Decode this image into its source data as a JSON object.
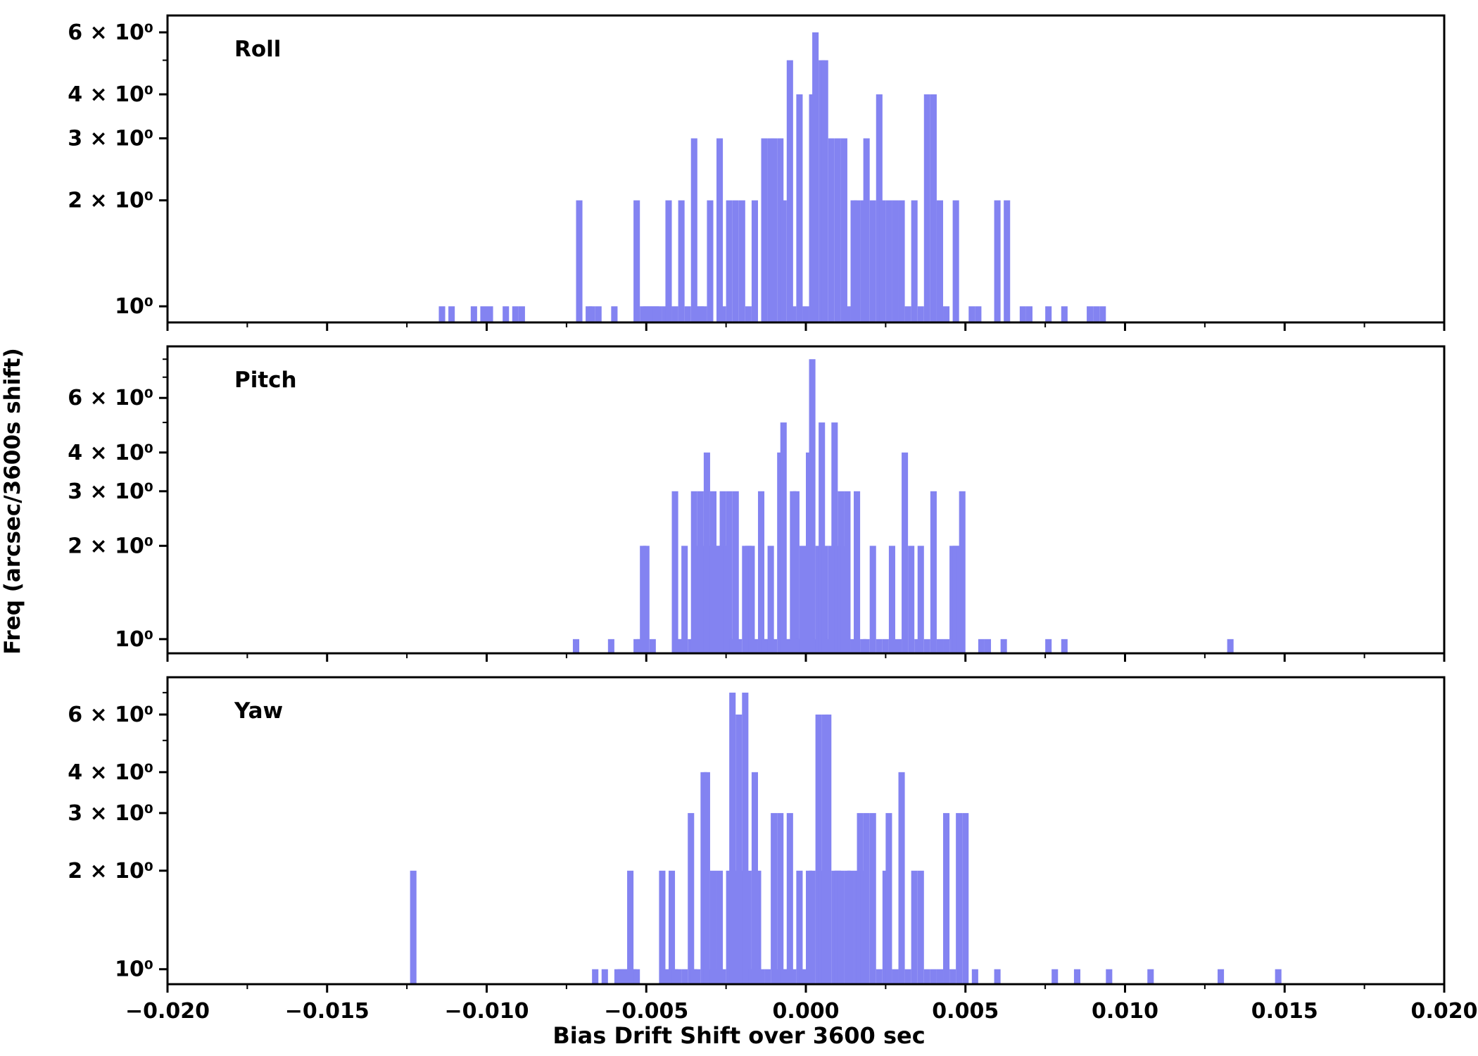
{
  "chart_data": {
    "type": "bar",
    "subtype": "histogram-log-y",
    "xlabel": "Bias Drift Shift over 3600 sec",
    "ylabel": "Freq (arcsec/3600s shift)",
    "xlim": [
      -0.02,
      0.02
    ],
    "x_ticks": [
      {
        "v": -0.02,
        "label": "−0.020"
      },
      {
        "v": -0.015,
        "label": "−0.015"
      },
      {
        "v": -0.01,
        "label": "−0.010"
      },
      {
        "v": -0.005,
        "label": "−0.005"
      },
      {
        "v": 0.0,
        "label": "0.000"
      },
      {
        "v": 0.005,
        "label": "0.005"
      },
      {
        "v": 0.01,
        "label": "0.010"
      },
      {
        "v": 0.015,
        "label": "0.015"
      },
      {
        "v": 0.02,
        "label": "0.020"
      }
    ],
    "x_minor_step": 0.0025,
    "y_scale": "log",
    "y_ticks": [
      {
        "v": 1,
        "label": "10⁰"
      },
      {
        "v": 2,
        "label": "2 × 10⁰"
      },
      {
        "v": 3,
        "label": "3 × 10⁰"
      },
      {
        "v": 4,
        "label": "4 × 10⁰"
      },
      {
        "v": 6,
        "label": "6 × 10⁰"
      }
    ],
    "y_minor_ticks": [
      5,
      7,
      8,
      9
    ],
    "bin_width": 0.0002,
    "bar_color": "#8383f1",
    "grid": false,
    "legend": "none",
    "panels": [
      {
        "label": "Roll",
        "ylim": [
          0.9,
          6.7
        ],
        "bars": [
          [
            -0.0114,
            1
          ],
          [
            -0.0111,
            1
          ],
          [
            -0.0104,
            1
          ],
          [
            -0.0101,
            1
          ],
          [
            -0.0099,
            1
          ],
          [
            -0.0094,
            1
          ],
          [
            -0.0091,
            1
          ],
          [
            -0.0089,
            1
          ],
          [
            -0.0071,
            2
          ],
          [
            -0.0068,
            1
          ],
          [
            -0.0067,
            1
          ],
          [
            -0.0065,
            1
          ],
          [
            -0.006,
            1
          ],
          [
            -0.0053,
            2
          ],
          [
            -0.0051,
            1
          ],
          [
            -0.005,
            1
          ],
          [
            -0.0049,
            1
          ],
          [
            -0.0048,
            1
          ],
          [
            -0.0047,
            1
          ],
          [
            -0.0046,
            1
          ],
          [
            -0.0044,
            1
          ],
          [
            -0.0043,
            2
          ],
          [
            -0.0041,
            1
          ],
          [
            -0.0039,
            2
          ],
          [
            -0.0037,
            1
          ],
          [
            -0.0035,
            3
          ],
          [
            -0.0034,
            1
          ],
          [
            -0.0033,
            1
          ],
          [
            -0.0032,
            1
          ],
          [
            -0.003,
            2
          ],
          [
            -0.0027,
            3
          ],
          [
            -0.0026,
            1
          ],
          [
            -0.0024,
            2
          ],
          [
            -0.0022,
            2
          ],
          [
            -0.002,
            2
          ],
          [
            -0.0018,
            1
          ],
          [
            -0.0016,
            2
          ],
          [
            -0.0013,
            3
          ],
          [
            -0.0011,
            3
          ],
          [
            -0.001,
            3
          ],
          [
            -0.0008,
            3
          ],
          [
            -0.0007,
            2
          ],
          [
            -0.0005,
            5
          ],
          [
            -0.0004,
            1
          ],
          [
            -0.0002,
            4
          ],
          [
            0.0,
            1
          ],
          [
            0.0002,
            4
          ],
          [
            0.0003,
            6
          ],
          [
            0.0005,
            5
          ],
          [
            0.0006,
            5
          ],
          [
            0.0008,
            3
          ],
          [
            0.001,
            3
          ],
          [
            0.0012,
            3
          ],
          [
            0.0013,
            1
          ],
          [
            0.0015,
            2
          ],
          [
            0.0016,
            2
          ],
          [
            0.0018,
            2
          ],
          [
            0.0019,
            3
          ],
          [
            0.0021,
            2
          ],
          [
            0.0023,
            4
          ],
          [
            0.0024,
            2
          ],
          [
            0.0026,
            2
          ],
          [
            0.0028,
            2
          ],
          [
            0.003,
            2
          ],
          [
            0.0032,
            1
          ],
          [
            0.0034,
            2
          ],
          [
            0.0036,
            1
          ],
          [
            0.0038,
            4
          ],
          [
            0.004,
            4
          ],
          [
            0.0042,
            2
          ],
          [
            0.0044,
            1
          ],
          [
            0.0047,
            2
          ],
          [
            0.0052,
            1
          ],
          [
            0.0054,
            1
          ],
          [
            0.006,
            2
          ],
          [
            0.0063,
            2
          ],
          [
            0.0068,
            1
          ],
          [
            0.007,
            1
          ],
          [
            0.0076,
            1
          ],
          [
            0.0081,
            1
          ],
          [
            0.0089,
            1
          ],
          [
            0.0091,
            1
          ],
          [
            0.0093,
            1
          ]
        ]
      },
      {
        "label": "Pitch",
        "ylim": [
          0.9,
          8.8
        ],
        "bars": [
          [
            -0.0072,
            1
          ],
          [
            -0.0061,
            1
          ],
          [
            -0.0053,
            1
          ],
          [
            -0.0052,
            1
          ],
          [
            -0.0051,
            2
          ],
          [
            -0.005,
            2
          ],
          [
            -0.0048,
            1
          ],
          [
            -0.0041,
            3
          ],
          [
            -0.004,
            1
          ],
          [
            -0.0039,
            1
          ],
          [
            -0.0038,
            2
          ],
          [
            -0.0036,
            1
          ],
          [
            -0.0035,
            3
          ],
          [
            -0.0034,
            2
          ],
          [
            -0.0033,
            3
          ],
          [
            -0.0032,
            2
          ],
          [
            -0.0031,
            4
          ],
          [
            -0.003,
            2
          ],
          [
            -0.0029,
            3
          ],
          [
            -0.0028,
            2
          ],
          [
            -0.0027,
            2
          ],
          [
            -0.0026,
            3
          ],
          [
            -0.0025,
            2
          ],
          [
            -0.0024,
            3
          ],
          [
            -0.0023,
            1
          ],
          [
            -0.0022,
            3
          ],
          [
            -0.0021,
            1
          ],
          [
            -0.0019,
            2
          ],
          [
            -0.0018,
            2
          ],
          [
            -0.0017,
            2
          ],
          [
            -0.0016,
            1
          ],
          [
            -0.0014,
            3
          ],
          [
            -0.0013,
            1
          ],
          [
            -0.0012,
            1
          ],
          [
            -0.0011,
            2
          ],
          [
            -0.001,
            1
          ],
          [
            -0.0008,
            4
          ],
          [
            -0.0007,
            5
          ],
          [
            -0.0006,
            1
          ],
          [
            -0.0005,
            1
          ],
          [
            -0.0004,
            3
          ],
          [
            -0.0003,
            3
          ],
          [
            -0.0002,
            1
          ],
          [
            -0.0001,
            2
          ],
          [
            0.0001,
            4
          ],
          [
            0.0002,
            8
          ],
          [
            0.0003,
            1
          ],
          [
            0.0004,
            2
          ],
          [
            0.0005,
            5
          ],
          [
            0.0006,
            2
          ],
          [
            0.0007,
            1
          ],
          [
            0.0008,
            2
          ],
          [
            0.0009,
            5
          ],
          [
            0.001,
            2
          ],
          [
            0.0011,
            3
          ],
          [
            0.0012,
            2
          ],
          [
            0.0013,
            3
          ],
          [
            0.0015,
            1
          ],
          [
            0.0016,
            3
          ],
          [
            0.0018,
            1
          ],
          [
            0.0019,
            1
          ],
          [
            0.0021,
            2
          ],
          [
            0.0023,
            1
          ],
          [
            0.0025,
            1
          ],
          [
            0.0027,
            2
          ],
          [
            0.0029,
            1
          ],
          [
            0.0031,
            4
          ],
          [
            0.0033,
            2
          ],
          [
            0.0035,
            1
          ],
          [
            0.0036,
            2
          ],
          [
            0.0038,
            1
          ],
          [
            0.004,
            3
          ],
          [
            0.0042,
            1
          ],
          [
            0.0044,
            1
          ],
          [
            0.0046,
            2
          ],
          [
            0.0047,
            2
          ],
          [
            0.0048,
            2
          ],
          [
            0.0049,
            3
          ],
          [
            0.0055,
            1
          ],
          [
            0.0057,
            1
          ],
          [
            0.0062,
            1
          ],
          [
            0.0076,
            1
          ],
          [
            0.0081,
            1
          ],
          [
            0.0133,
            1
          ]
        ]
      },
      {
        "label": "Yaw",
        "ylim": [
          0.9,
          7.8
        ],
        "bars": [
          [
            -0.0123,
            2
          ],
          [
            -0.0066,
            1
          ],
          [
            -0.0063,
            1
          ],
          [
            -0.0059,
            1
          ],
          [
            -0.0058,
            1
          ],
          [
            -0.0057,
            1
          ],
          [
            -0.0056,
            1
          ],
          [
            -0.0055,
            2
          ],
          [
            -0.0054,
            1
          ],
          [
            -0.0053,
            1
          ],
          [
            -0.0045,
            2
          ],
          [
            -0.0044,
            1
          ],
          [
            -0.0042,
            2
          ],
          [
            -0.0041,
            1
          ],
          [
            -0.004,
            1
          ],
          [
            -0.0038,
            1
          ],
          [
            -0.0036,
            3
          ],
          [
            -0.0035,
            1
          ],
          [
            -0.0034,
            1
          ],
          [
            -0.0032,
            4
          ],
          [
            -0.0031,
            4
          ],
          [
            -0.003,
            1
          ],
          [
            -0.0029,
            2
          ],
          [
            -0.0028,
            1
          ],
          [
            -0.0027,
            2
          ],
          [
            -0.0026,
            1
          ],
          [
            -0.0024,
            2
          ],
          [
            -0.0023,
            7
          ],
          [
            -0.0022,
            2
          ],
          [
            -0.0021,
            6
          ],
          [
            -0.002,
            2
          ],
          [
            -0.0019,
            7
          ],
          [
            -0.0018,
            2
          ],
          [
            -0.0017,
            1
          ],
          [
            -0.0016,
            4
          ],
          [
            -0.0015,
            2
          ],
          [
            -0.0014,
            1
          ],
          [
            -0.0012,
            1
          ],
          [
            -0.001,
            3
          ],
          [
            -0.0009,
            1
          ],
          [
            -0.0008,
            3
          ],
          [
            -0.0007,
            1
          ],
          [
            -0.0006,
            1
          ],
          [
            -0.0005,
            3
          ],
          [
            -0.0004,
            1
          ],
          [
            -0.0002,
            2
          ],
          [
            -0.0001,
            1
          ],
          [
            0.0001,
            2
          ],
          [
            0.0002,
            2
          ],
          [
            0.0004,
            6
          ],
          [
            0.0005,
            2
          ],
          [
            0.0006,
            6
          ],
          [
            0.0007,
            6
          ],
          [
            0.0009,
            2
          ],
          [
            0.001,
            2
          ],
          [
            0.0011,
            2
          ],
          [
            0.0013,
            2
          ],
          [
            0.0014,
            2
          ],
          [
            0.0016,
            2
          ],
          [
            0.0017,
            3
          ],
          [
            0.0018,
            2
          ],
          [
            0.0019,
            3
          ],
          [
            0.0021,
            3
          ],
          [
            0.0023,
            1
          ],
          [
            0.0025,
            2
          ],
          [
            0.0026,
            3
          ],
          [
            0.0028,
            1
          ],
          [
            0.003,
            4
          ],
          [
            0.0032,
            1
          ],
          [
            0.0034,
            2
          ],
          [
            0.0036,
            2
          ],
          [
            0.0038,
            1
          ],
          [
            0.004,
            1
          ],
          [
            0.0042,
            1
          ],
          [
            0.0044,
            3
          ],
          [
            0.0046,
            1
          ],
          [
            0.0048,
            3
          ],
          [
            0.005,
            3
          ],
          [
            0.0053,
            1
          ],
          [
            0.006,
            1
          ],
          [
            0.0078,
            1
          ],
          [
            0.0085,
            1
          ],
          [
            0.0095,
            1
          ],
          [
            0.0108,
            1
          ],
          [
            0.013,
            1
          ],
          [
            0.0148,
            1
          ]
        ]
      }
    ]
  }
}
